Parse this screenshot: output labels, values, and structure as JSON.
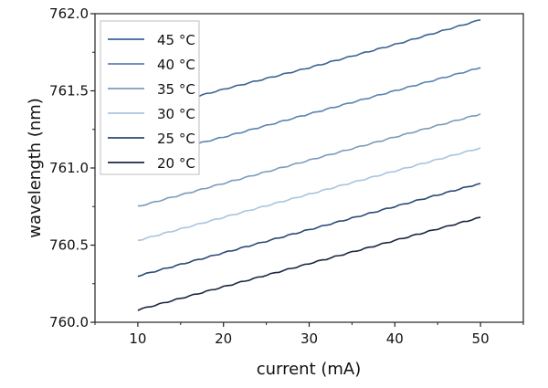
{
  "chart_data": {
    "type": "line",
    "title": "",
    "xlabel": "current (mA)",
    "ylabel": "wavelength (nm)",
    "xlim": [
      5,
      55
    ],
    "ylim": [
      760.0,
      762.0
    ],
    "xticks": [
      10,
      20,
      30,
      40,
      50
    ],
    "yticks": [
      760.0,
      760.5,
      761.0,
      761.5,
      762.0
    ],
    "ytick_labels": [
      "760.0",
      "760.5",
      "761.0",
      "761.5",
      "762.0"
    ],
    "grid": false,
    "legend_position": "top-left",
    "series": [
      {
        "name": "45 °C",
        "color": "#3d6394",
        "x": [
          10,
          20,
          30,
          40,
          50
        ],
        "y": [
          761.36,
          761.51,
          761.65,
          761.8,
          761.96
        ]
      },
      {
        "name": "40 °C",
        "color": "#5b82b3",
        "x": [
          10,
          20,
          30,
          40,
          50
        ],
        "y": [
          761.06,
          761.2,
          761.35,
          761.5,
          761.65
        ]
      },
      {
        "name": "35 °C",
        "color": "#7b9bbc",
        "x": [
          10,
          20,
          30,
          40,
          50
        ],
        "y": [
          760.75,
          760.9,
          761.05,
          761.2,
          761.35
        ]
      },
      {
        "name": "30 °C",
        "color": "#a9c4de",
        "x": [
          10,
          20,
          30,
          40,
          50
        ],
        "y": [
          760.53,
          760.68,
          760.83,
          760.98,
          761.13
        ]
      },
      {
        "name": "25 °C",
        "color": "#2a4a78",
        "x": [
          10,
          20,
          30,
          40,
          50
        ],
        "y": [
          760.3,
          760.45,
          760.6,
          760.75,
          760.9
        ]
      },
      {
        "name": "20 °C",
        "color": "#1b2840",
        "x": [
          10,
          20,
          30,
          40,
          50
        ],
        "y": [
          760.08,
          760.23,
          760.38,
          760.53,
          760.68
        ]
      }
    ]
  }
}
